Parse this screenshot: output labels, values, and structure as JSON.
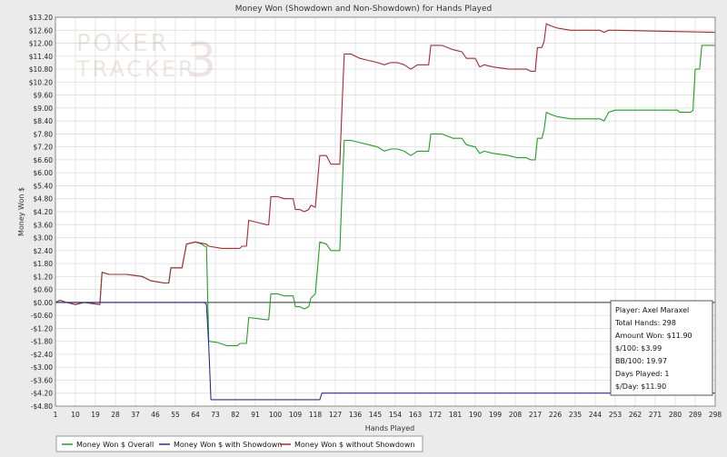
{
  "watermark": {
    "line1": "POKER",
    "line2": "TRACKER",
    "digit": "3"
  },
  "colors": {
    "overall": "#22a022",
    "showdown": "#2a2aa0",
    "non_showdown": "#a82a32",
    "grid": "#d9d9d9",
    "background": "#ffffff",
    "frame": "#ebebeb"
  },
  "stats_box": {
    "lines": [
      "Player: Axel Maraxel",
      "Total Hands: 298",
      "Amount Won: $11.90",
      "$/100: $3.99",
      "BB/100: 19.97",
      "Days Played: 1",
      "$/Day: $11.90"
    ]
  },
  "chart_data": {
    "type": "line",
    "title": "Money Won (Showdown and Non-Showdown) for Hands Played",
    "xlabel": "Hands Played",
    "ylabel": "Money Won $",
    "xlim": [
      1,
      298
    ],
    "ylim": [
      -4.8,
      13.2
    ],
    "x_ticks": [
      1,
      10,
      19,
      28,
      37,
      46,
      55,
      64,
      73,
      82,
      91,
      100,
      109,
      118,
      127,
      136,
      145,
      154,
      163,
      172,
      181,
      190,
      199,
      208,
      217,
      226,
      235,
      244,
      253,
      262,
      271,
      280,
      289,
      298
    ],
    "y_ticks": [
      -4.8,
      -4.2,
      -3.6,
      -3.0,
      -2.4,
      -1.8,
      -1.2,
      -0.6,
      0.0,
      0.6,
      1.2,
      1.8,
      2.4,
      3.0,
      3.6,
      4.2,
      4.8,
      5.4,
      6.0,
      6.6,
      7.2,
      7.8,
      8.4,
      9.0,
      9.6,
      10.2,
      10.8,
      11.4,
      12.0,
      12.6,
      13.2
    ],
    "y_tick_labels": [
      "-$4.80",
      "-$4.20",
      "-$3.60",
      "-$3.00",
      "-$2.40",
      "-$1.80",
      "-$1.20",
      "-$0.60",
      "$0.00",
      "$0.60",
      "$1.20",
      "$1.80",
      "$2.40",
      "$3.00",
      "$3.60",
      "$4.20",
      "$4.80",
      "$5.40",
      "$6.00",
      "$6.60",
      "$7.20",
      "$7.80",
      "$8.40",
      "$9.00",
      "$9.60",
      "$10.20",
      "$10.80",
      "$11.40",
      "$12.00",
      "$12.60",
      "$13.20"
    ],
    "grid": true,
    "legend_position": "bottom",
    "series": [
      {
        "name": "Money Won $ Overall",
        "color": "#22a022",
        "points": [
          [
            1,
            0
          ],
          [
            3,
            0.1
          ],
          [
            6,
            0
          ],
          [
            10,
            -0.1
          ],
          [
            14,
            0
          ],
          [
            21,
            -0.1
          ],
          [
            22,
            1.4
          ],
          [
            25,
            1.3
          ],
          [
            33,
            1.3
          ],
          [
            40,
            1.2
          ],
          [
            44,
            1.0
          ],
          [
            50,
            0.9
          ],
          [
            52,
            0.9
          ],
          [
            53,
            1.6
          ],
          [
            57,
            1.6
          ],
          [
            58,
            1.6
          ],
          [
            60,
            2.7
          ],
          [
            64,
            2.8
          ],
          [
            67,
            2.7
          ],
          [
            68,
            2.6
          ],
          [
            69,
            2.6
          ],
          [
            70,
            -1.8
          ],
          [
            74,
            -1.85
          ],
          [
            78,
            -2.0
          ],
          [
            83,
            -2.0
          ],
          [
            84,
            -1.9
          ],
          [
            87,
            -1.9
          ],
          [
            88,
            -0.7
          ],
          [
            92,
            -0.75
          ],
          [
            96,
            -0.8
          ],
          [
            97,
            -0.8
          ],
          [
            98,
            0.4
          ],
          [
            101,
            0.4
          ],
          [
            104,
            0.3
          ],
          [
            108,
            0.3
          ],
          [
            109,
            -0.2
          ],
          [
            111,
            -0.2
          ],
          [
            113,
            -0.3
          ],
          [
            115,
            -0.2
          ],
          [
            116,
            0.2
          ],
          [
            118,
            0.4
          ],
          [
            120,
            2.8
          ],
          [
            123,
            2.7
          ],
          [
            125,
            2.4
          ],
          [
            127,
            2.4
          ],
          [
            129,
            2.4
          ],
          [
            130,
            5.0
          ],
          [
            131,
            7.5
          ],
          [
            134,
            7.5
          ],
          [
            138,
            7.4
          ],
          [
            142,
            7.3
          ],
          [
            146,
            7.2
          ],
          [
            149,
            7.0
          ],
          [
            152,
            7.1
          ],
          [
            155,
            7.1
          ],
          [
            158,
            7.0
          ],
          [
            161,
            6.8
          ],
          [
            164,
            7.0
          ],
          [
            167,
            7.0
          ],
          [
            169,
            7.0
          ],
          [
            170,
            7.8
          ],
          [
            175,
            7.8
          ],
          [
            180,
            7.6
          ],
          [
            184,
            7.6
          ],
          [
            186,
            7.3
          ],
          [
            190,
            7.2
          ],
          [
            192,
            6.9
          ],
          [
            194,
            7.0
          ],
          [
            198,
            6.9
          ],
          [
            205,
            6.8
          ],
          [
            209,
            6.7
          ],
          [
            213,
            6.7
          ],
          [
            215,
            6.6
          ],
          [
            217,
            6.6
          ],
          [
            218,
            7.6
          ],
          [
            220,
            7.6
          ],
          [
            221,
            8.0
          ],
          [
            222,
            8.8
          ],
          [
            224,
            8.7
          ],
          [
            227,
            8.6
          ],
          [
            233,
            8.5
          ],
          [
            246,
            8.5
          ],
          [
            248,
            8.4
          ],
          [
            250,
            8.8
          ],
          [
            253,
            8.9
          ],
          [
            258,
            8.9
          ],
          [
            270,
            8.9
          ],
          [
            281,
            8.9
          ],
          [
            282,
            8.8
          ],
          [
            285,
            8.8
          ],
          [
            287,
            8.8
          ],
          [
            288,
            8.9
          ],
          [
            289,
            10.8
          ],
          [
            291,
            10.8
          ],
          [
            292,
            11.9
          ],
          [
            298,
            11.9
          ]
        ]
      },
      {
        "name": "Money Won $ with Showdown",
        "color": "#2a2aa0",
        "points": [
          [
            1,
            0
          ],
          [
            68,
            0
          ],
          [
            69,
            -0.1
          ],
          [
            70,
            -2.0
          ],
          [
            71,
            -4.5
          ],
          [
            85,
            -4.5
          ],
          [
            120,
            -4.5
          ],
          [
            121,
            -4.2
          ],
          [
            150,
            -4.2
          ],
          [
            200,
            -4.2
          ],
          [
            298,
            -4.2
          ]
        ]
      },
      {
        "name": "Money Won $ without Showdown",
        "color": "#a82a32",
        "points": [
          [
            1,
            0
          ],
          [
            3,
            0.1
          ],
          [
            6,
            0
          ],
          [
            10,
            -0.1
          ],
          [
            14,
            0
          ],
          [
            21,
            -0.1
          ],
          [
            22,
            1.4
          ],
          [
            25,
            1.3
          ],
          [
            33,
            1.3
          ],
          [
            40,
            1.2
          ],
          [
            44,
            1.0
          ],
          [
            50,
            0.9
          ],
          [
            52,
            0.9
          ],
          [
            53,
            1.6
          ],
          [
            57,
            1.6
          ],
          [
            58,
            1.6
          ],
          [
            60,
            2.7
          ],
          [
            64,
            2.8
          ],
          [
            69,
            2.7
          ],
          [
            70,
            2.6
          ],
          [
            76,
            2.5
          ],
          [
            82,
            2.5
          ],
          [
            84,
            2.5
          ],
          [
            85,
            2.6
          ],
          [
            87,
            2.6
          ],
          [
            88,
            3.8
          ],
          [
            92,
            3.7
          ],
          [
            96,
            3.6
          ],
          [
            97,
            3.6
          ],
          [
            98,
            4.9
          ],
          [
            101,
            4.9
          ],
          [
            104,
            4.8
          ],
          [
            108,
            4.8
          ],
          [
            109,
            4.3
          ],
          [
            111,
            4.3
          ],
          [
            113,
            4.2
          ],
          [
            115,
            4.3
          ],
          [
            116,
            4.5
          ],
          [
            118,
            4.4
          ],
          [
            120,
            6.8
          ],
          [
            123,
            6.8
          ],
          [
            125,
            6.4
          ],
          [
            127,
            6.4
          ],
          [
            129,
            6.4
          ],
          [
            130,
            9.0
          ],
          [
            131,
            11.5
          ],
          [
            134,
            11.5
          ],
          [
            138,
            11.3
          ],
          [
            142,
            11.2
          ],
          [
            146,
            11.1
          ],
          [
            149,
            11.0
          ],
          [
            152,
            11.1
          ],
          [
            155,
            11.1
          ],
          [
            158,
            11.0
          ],
          [
            161,
            10.8
          ],
          [
            164,
            11.0
          ],
          [
            167,
            11.0
          ],
          [
            169,
            11.0
          ],
          [
            170,
            11.9
          ],
          [
            175,
            11.9
          ],
          [
            180,
            11.7
          ],
          [
            184,
            11.6
          ],
          [
            186,
            11.3
          ],
          [
            190,
            11.3
          ],
          [
            192,
            10.9
          ],
          [
            194,
            11.0
          ],
          [
            198,
            10.9
          ],
          [
            205,
            10.8
          ],
          [
            209,
            10.8
          ],
          [
            213,
            10.8
          ],
          [
            215,
            10.7
          ],
          [
            217,
            10.7
          ],
          [
            218,
            11.8
          ],
          [
            220,
            11.8
          ],
          [
            221,
            12.1
          ],
          [
            222,
            12.9
          ],
          [
            224,
            12.8
          ],
          [
            227,
            12.7
          ],
          [
            233,
            12.6
          ],
          [
            246,
            12.6
          ],
          [
            248,
            12.5
          ],
          [
            250,
            12.6
          ],
          [
            253,
            12.6
          ],
          [
            298,
            12.5
          ]
        ]
      }
    ]
  }
}
